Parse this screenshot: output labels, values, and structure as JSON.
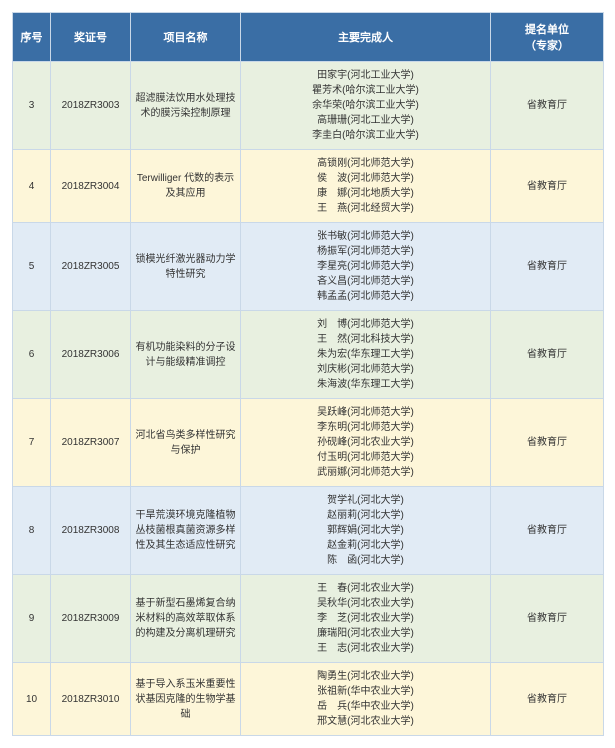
{
  "columns": {
    "idx": "序号",
    "cert": "奖证号",
    "proj": "项目名称",
    "ppl": "主要完成人",
    "nom": "提名单位\n（专家）"
  },
  "stripe_colors": [
    "#e8f0e0",
    "#fdf6d9",
    "#e1ebf5"
  ],
  "rows": [
    {
      "idx": "3",
      "cert": "2018ZR3003",
      "proj": "超滤膜法饮用水处理技术的膜污染控制原理",
      "people": [
        "田家宇(河北工业大学)",
        "瞿芳术(哈尔滨工业大学)",
        "余华荣(哈尔滨工业大学)",
        "高珊珊(河北工业大学)",
        "李圭白(哈尔滨工业大学)"
      ],
      "nom": "省教育厅"
    },
    {
      "idx": "4",
      "cert": "2018ZR3004",
      "proj": "Terwilliger 代数的表示及其应用",
      "people": [
        "高锁刚(河北师范大学)",
        "侯　波(河北师范大学)",
        "康　娜(河北地质大学)",
        "王　燕(河北经贸大学)"
      ],
      "nom": "省教育厅"
    },
    {
      "idx": "5",
      "cert": "2018ZR3005",
      "proj": "锁模光纤激光器动力学特性研究",
      "people": [
        "张书敏(河北师范大学)",
        "杨振军(河北师范大学)",
        "李星亮(河北师范大学)",
        "吝义昌(河北师范大学)",
        "韩孟孟(河北师范大学)"
      ],
      "nom": "省教育厅"
    },
    {
      "idx": "6",
      "cert": "2018ZR3006",
      "proj": "有机功能染料的分子设计与能级精准调控",
      "people": [
        "刘　博(河北师范大学)",
        "王　然(河北科技大学)",
        "朱为宏(华东理工大学)",
        "刘庆彬(河北师范大学)",
        "朱海波(华东理工大学)"
      ],
      "nom": "省教育厅"
    },
    {
      "idx": "7",
      "cert": "2018ZR3007",
      "proj": "河北省鸟类多样性研究与保护",
      "people": [
        "吴跃峰(河北师范大学)",
        "李东明(河北师范大学)",
        "孙砚峰(河北农业大学)",
        "付玉明(河北师范大学)",
        "武丽娜(河北师范大学)"
      ],
      "nom": "省教育厅"
    },
    {
      "idx": "8",
      "cert": "2018ZR3008",
      "proj": "干旱荒漠环境克隆植物丛枝菌根真菌资源多样性及其生态适应性研究",
      "people": [
        "贺学礼(河北大学)",
        "赵丽莉(河北大学)",
        "郭辉娟(河北大学)",
        "赵金莉(河北大学)",
        "陈　函(河北大学)"
      ],
      "nom": "省教育厅"
    },
    {
      "idx": "9",
      "cert": "2018ZR3009",
      "proj": "基于新型石墨烯复合纳米材料的高效萃取体系的构建及分离机理研究",
      "people": [
        "王　春(河北农业大学)",
        "吴秋华(河北农业大学)",
        "李　芝(河北农业大学)",
        "廉瑞阳(河北农业大学)",
        "王　志(河北农业大学)"
      ],
      "nom": "省教育厅"
    },
    {
      "idx": "10",
      "cert": "2018ZR3010",
      "proj": "基于导入系玉米重要性状基因克隆的生物学基础",
      "people": [
        "陶勇生(河北农业大学)",
        "张祖新(华中农业大学)",
        "岳　兵(华中农业大学)",
        "邢文慧(河北农业大学)"
      ],
      "nom": "省教育厅"
    }
  ]
}
